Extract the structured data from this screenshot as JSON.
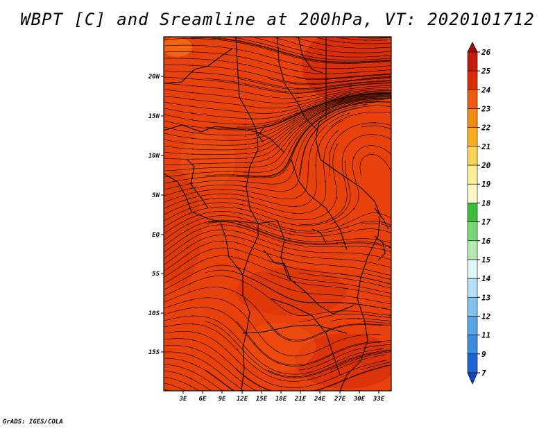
{
  "title": "WBPT [C] and Sreamline at 200hPa, VT: 2020101712",
  "footer": "GrADS: IGES/COLA",
  "map": {
    "lat_labels": [
      "20N",
      "15N",
      "10N",
      "5N",
      "EQ",
      "5S",
      "10S",
      "15S"
    ],
    "lon_labels": [
      "3E",
      "6E",
      "9E",
      "12E",
      "15E",
      "18E",
      "21E",
      "24E",
      "27E",
      "30E",
      "33E"
    ],
    "background_color": "#e8410c",
    "streamline_color": "#000000"
  },
  "colorbar": {
    "levels": [
      "26",
      "25",
      "24",
      "23",
      "22",
      "21",
      "20",
      "19",
      "18",
      "17",
      "16",
      "15",
      "14",
      "13",
      "12",
      "11",
      "9",
      "7"
    ],
    "colors": [
      "#a50a0a",
      "#c41a0a",
      "#dc2d0a",
      "#ef5a12",
      "#f48a12",
      "#fcae22",
      "#fdd55a",
      "#fef09a",
      "#fff8c8",
      "#3cbf3c",
      "#78d878",
      "#b4ecb0",
      "#e0f8f8",
      "#b4e0f8",
      "#82c4f0",
      "#5aa8e8",
      "#3c8ce0",
      "#1e64d2",
      "#0a46c8"
    ]
  }
}
